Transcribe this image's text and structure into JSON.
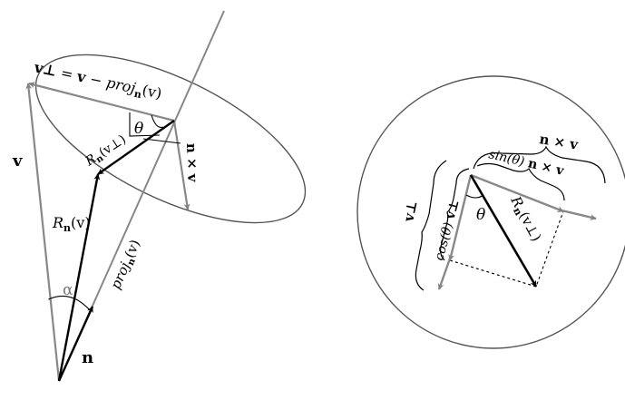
{
  "figure": {
    "colors": {
      "black": "#000000",
      "gray": "#808080",
      "outline": "#555555"
    },
    "left_panel": {
      "labels": {
        "v_perp_eq": {
          "lhs": "v⊥",
          "eq": " = ",
          "v": "v",
          "minus": " − ",
          "proj": "proj",
          "proj_sub": "n",
          "arg": "(v)"
        },
        "v": "v",
        "theta": "θ",
        "n_cross_v": "n × v",
        "R_n_v_perp": {
          "R": "R",
          "sub": "n",
          "arg": "(v⊥)"
        },
        "R_n_v": {
          "R": "R",
          "sub": "n",
          "arg": "(v)"
        },
        "alpha": "α",
        "proj_n_v": {
          "proj": "proj",
          "sub": "n",
          "arg": "(v)"
        },
        "n": "n"
      }
    },
    "right_panel": {
      "labels": {
        "n_cross_v": "n × v",
        "sin_theta_n_cross_v": {
          "fn": "sin(θ)",
          "vec": "n × v"
        },
        "v_perp": "v⊥",
        "cos_theta_v_perp": {
          "fn": "cos(θ)",
          "vec": "v⊥"
        },
        "theta": "θ",
        "R_n_v_perp": {
          "R": "R",
          "sub": "n",
          "arg": "(v⊥)"
        }
      }
    }
  }
}
